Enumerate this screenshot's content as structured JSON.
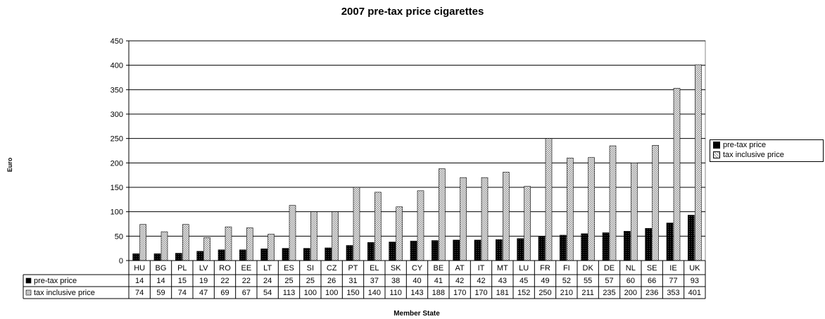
{
  "chart_data": {
    "type": "bar",
    "title": "2007 pre-tax price cigarettes",
    "xlabel": "Member State",
    "ylabel": "Euro",
    "ylim": [
      0,
      450
    ],
    "yticks": [
      0,
      50,
      100,
      150,
      200,
      250,
      300,
      350,
      400,
      450
    ],
    "grid": true,
    "legend_position": "right",
    "categories": [
      "HU",
      "BG",
      "PL",
      "LV",
      "RO",
      "EE",
      "LT",
      "ES",
      "SI",
      "CZ",
      "PT",
      "EL",
      "SK",
      "CY",
      "BE",
      "AT",
      "IT",
      "MT",
      "LU",
      "FR",
      "FI",
      "DK",
      "DE",
      "NL",
      "SE",
      "IE",
      "UK"
    ],
    "series": [
      {
        "name": "pre-tax price",
        "color": "#000000",
        "values": [
          14,
          14,
          15,
          19,
          22,
          22,
          24,
          25,
          25,
          26,
          31,
          37,
          38,
          40,
          41,
          42,
          42,
          43,
          45,
          49,
          52,
          55,
          57,
          60,
          66,
          77,
          93
        ]
      },
      {
        "name": "tax inclusive price",
        "color": "#cccccc",
        "values": [
          74,
          59,
          74,
          47,
          69,
          67,
          54,
          113,
          100,
          100,
          150,
          140,
          110,
          143,
          188,
          170,
          170,
          181,
          152,
          250,
          210,
          211,
          235,
          200,
          236,
          353,
          401
        ]
      }
    ]
  }
}
